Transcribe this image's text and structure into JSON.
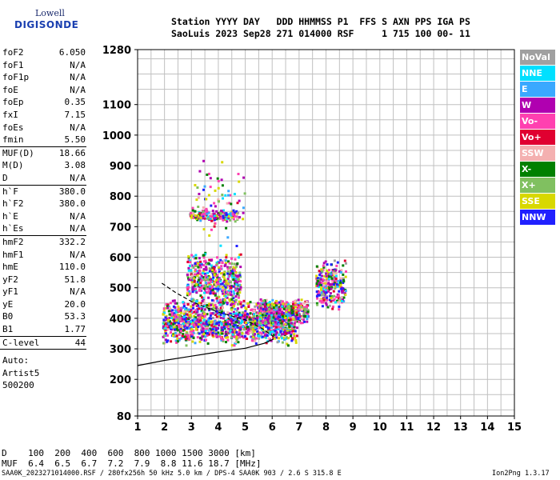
{
  "logo": {
    "top": "Lowell",
    "bottom": "DIGISONDE"
  },
  "header": {
    "line1": "Station YYYY DAY   DDD HHMMSS P1  FFS S AXN PPS IGA PS",
    "line2": "SaoLuis 2023 Sep28 271 014000 RSF     1 715 100 00- 11"
  },
  "params": [
    {
      "k": "foF2",
      "v": "6.050"
    },
    {
      "k": "foF1",
      "v": "N/A"
    },
    {
      "k": "foF1p",
      "v": "N/A"
    },
    {
      "k": "foE",
      "v": "N/A"
    },
    {
      "k": "foEp",
      "v": "0.35"
    },
    {
      "k": "fxI",
      "v": "7.15"
    },
    {
      "k": "foEs",
      "v": "N/A"
    },
    {
      "k": "fmin",
      "v": "5.50"
    },
    {
      "sep": true
    },
    {
      "k": "MUF(D)",
      "v": "18.66"
    },
    {
      "k": "M(D)",
      "v": "3.08"
    },
    {
      "k": "D",
      "v": "N/A"
    },
    {
      "sep": true
    },
    {
      "k": "h`F",
      "v": "380.0"
    },
    {
      "k": "h`F2",
      "v": "380.0"
    },
    {
      "k": "h`E",
      "v": "N/A"
    },
    {
      "k": "h`Es",
      "v": "N/A"
    },
    {
      "sep": true
    },
    {
      "k": "hmF2",
      "v": "332.2"
    },
    {
      "k": "hmF1",
      "v": "N/A"
    },
    {
      "k": "hmE",
      "v": "110.0"
    },
    {
      "k": "yF2",
      "v": "51.8"
    },
    {
      "k": "yF1",
      "v": "N/A"
    },
    {
      "k": "yE",
      "v": "20.0"
    },
    {
      "k": "B0",
      "v": "53.3"
    },
    {
      "k": "B1",
      "v": "1.77"
    },
    {
      "sep": true
    },
    {
      "k": "C-level",
      "v": "44"
    },
    {
      "sep": true
    }
  ],
  "auto": [
    "Auto:",
    "Artist5",
    "500200"
  ],
  "legend": [
    {
      "label": "NoVal",
      "color": "#a0a0a0"
    },
    {
      "label": "NNE",
      "color": "#00e0ff"
    },
    {
      "label": "E",
      "color": "#3aa8ff"
    },
    {
      "label": "W",
      "color": "#b000b0"
    },
    {
      "label": "Vo-",
      "color": "#ff40b0"
    },
    {
      "label": "Vo+",
      "color": "#e00030"
    },
    {
      "label": "SSW",
      "color": "#f4b0b0"
    },
    {
      "label": "X-",
      "color": "#008000"
    },
    {
      "label": "X+",
      "color": "#80c060"
    },
    {
      "label": "SSE",
      "color": "#d8d800"
    },
    {
      "label": "NNW",
      "color": "#2020ff"
    }
  ],
  "bottom": {
    "line1": "D    100  200  400  600  800 1000 1500 3000 [km]",
    "line2": "MUF  6.4  6.5  6.7  7.2  7.9  8.8 11.6 18.7 [MHz]"
  },
  "footer": {
    "left": "SAA0K_2023271014000.RSF / 280fx256h 50 kHz 5.0 km / DPS-4 SAA0K 903 / 2.6 S 315.8 E",
    "right": "Ion2Png 1.3.17"
  },
  "chart_data": {
    "type": "scatter",
    "title": "",
    "xlabel": "",
    "ylabel": "",
    "xlim": [
      1,
      15
    ],
    "ylim": [
      80,
      1280
    ],
    "xticks": [
      1,
      2,
      3,
      4,
      5,
      6,
      7,
      8,
      9,
      10,
      11,
      12,
      13,
      14,
      15
    ],
    "yticks": [
      80,
      200,
      300,
      400,
      500,
      600,
      700,
      800,
      900,
      1000,
      1100,
      1280
    ],
    "grid": true,
    "clusters": [
      {
        "f": [
          1.9,
          6.9
        ],
        "h": [
          310,
          470
        ],
        "density": 1400
      },
      {
        "f": [
          2.8,
          4.8
        ],
        "h": [
          440,
          620
        ],
        "density": 500
      },
      {
        "f": [
          2.9,
          4.7
        ],
        "h": [
          720,
          760
        ],
        "density": 160
      },
      {
        "f": [
          5.5,
          7.3
        ],
        "h": [
          380,
          470
        ],
        "density": 400
      },
      {
        "f": [
          7.6,
          8.7
        ],
        "h": [
          420,
          600
        ],
        "density": 260
      },
      {
        "f": [
          3.0,
          5.0
        ],
        "h": [
          620,
          940
        ],
        "density": 80
      }
    ],
    "solid_profile": [
      [
        1.0,
        245
      ],
      [
        2.0,
        262
      ],
      [
        3.0,
        276
      ],
      [
        4.0,
        290
      ],
      [
        5.0,
        302
      ],
      [
        5.7,
        318
      ],
      [
        6.05,
        332
      ]
    ],
    "dashed_trace": [
      [
        1.9,
        515
      ],
      [
        2.4,
        485
      ],
      [
        3.0,
        455
      ],
      [
        4.0,
        420
      ],
      [
        5.0,
        395
      ],
      [
        5.6,
        368
      ],
      [
        6.05,
        340
      ]
    ]
  }
}
